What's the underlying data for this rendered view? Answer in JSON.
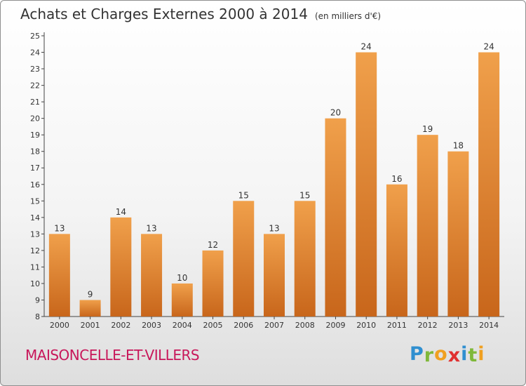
{
  "chart_data": {
    "type": "bar",
    "title": "Achats et Charges Externes 2000 à 2014",
    "subtitle": "(en milliers d'€)",
    "categories": [
      "2000",
      "2001",
      "2002",
      "2003",
      "2004",
      "2005",
      "2006",
      "2007",
      "2008",
      "2009",
      "2010",
      "2011",
      "2012",
      "2013",
      "2014"
    ],
    "values": [
      13,
      9,
      14,
      13,
      10,
      12,
      15,
      13,
      15,
      20,
      24,
      16,
      19,
      18,
      24
    ],
    "ylim": [
      8,
      25
    ],
    "yticks": [
      8,
      9,
      10,
      11,
      12,
      13,
      14,
      15,
      16,
      17,
      18,
      19,
      20,
      21,
      22,
      23,
      24,
      25
    ],
    "grid": false,
    "bar_color": "#f0a04b",
    "bar_color_dark": "#c8661b"
  },
  "footer": {
    "commune": "MAISONCELLE-ET-VILLERS",
    "commune_color": "#c8175a"
  },
  "logo": {
    "letters": [
      "P",
      "r",
      "o",
      "x",
      "i",
      "t",
      "i"
    ],
    "colors": [
      "#2f8fd0",
      "#7fb83a",
      "#f0a020",
      "#e03030",
      "#2f8fd0",
      "#7fb83a",
      "#f0a020"
    ]
  }
}
